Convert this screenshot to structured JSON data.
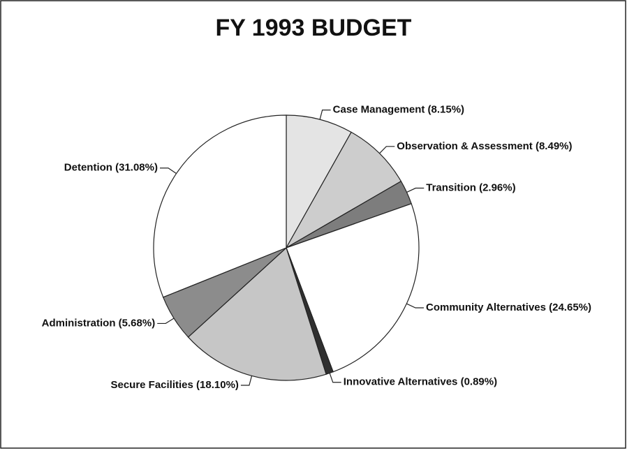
{
  "chart_data": {
    "type": "pie",
    "title": "FY 1993 BUDGET",
    "categories": [
      "Case Management (8.15%)",
      "Observation & Assessment (8.49%)",
      "Transition (2.96%)",
      "Community Alternatives (24.65%)",
      "Innovative Alternatives (0.89%)",
      "Secure Facilities (18.10%)",
      "Administration (5.68%)",
      "Detention (31.08%)"
    ],
    "values": [
      8.15,
      8.49,
      2.96,
      24.65,
      0.89,
      18.1,
      5.68,
      31.08
    ],
    "colors": [
      "#e4e4e4",
      "#cdcdcd",
      "#7d7d7d",
      "#ffffff",
      "#303030",
      "#c6c6c6",
      "#8c8c8c",
      "#ffffff"
    ]
  }
}
